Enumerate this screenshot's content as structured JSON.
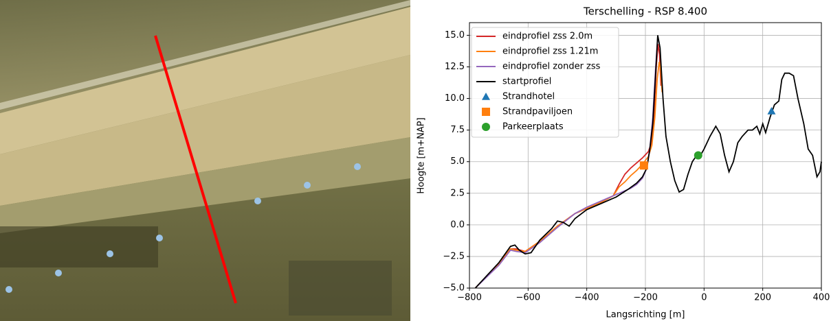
{
  "chart_data": {
    "type": "line",
    "title": "Terschelling - RSP 8.400",
    "xlabel": "Langsrichting [m]",
    "ylabel": "Hoogte [m+NAP]",
    "xlim": [
      -800,
      400
    ],
    "ylim": [
      -5,
      16
    ],
    "xticks": [
      {
        "value": -800,
        "label": "−800"
      },
      {
        "value": -600,
        "label": "−600"
      },
      {
        "value": -400,
        "label": "−400"
      },
      {
        "value": -200,
        "label": "−200"
      },
      0,
      200,
      400
    ],
    "yticks": [
      {
        "value": -5,
        "label": "−5.0"
      },
      {
        "value": -2.5,
        "label": "−2.5"
      },
      {
        "value": 0,
        "label": "0.0"
      },
      2.5,
      {
        "value": 5,
        "label": "5.0"
      },
      7.5,
      {
        "value": 10,
        "label": "10.0"
      },
      12.5,
      {
        "value": 15,
        "label": "15.0"
      }
    ],
    "grid": true,
    "legend": "upper left",
    "series": [
      {
        "name": "eindprofiel zss 2.0m",
        "color": "#d62728",
        "x": [
          -780,
          -700,
          -660,
          -640,
          -610,
          -560,
          -500,
          -440,
          -400,
          -350,
          -310,
          -290,
          -270,
          -250,
          -230,
          -210,
          -190,
          -178,
          -170,
          -163,
          -157,
          -152,
          -147
        ],
        "values": [
          -5,
          -3.1,
          -1.9,
          -1.9,
          -2.1,
          -1.3,
          -0.1,
          0.9,
          1.3,
          1.8,
          2.3,
          3.2,
          4.0,
          4.5,
          4.9,
          5.3,
          5.8,
          6.6,
          9,
          12.5,
          14.3,
          13.5,
          11
        ]
      },
      {
        "name": "eindprofiel zss 1.21m",
        "color": "#ff7f0e",
        "x": [
          -780,
          -700,
          -660,
          -640,
          -610,
          -560,
          -500,
          -440,
          -400,
          -350,
          -310,
          -290,
          -270,
          -250,
          -230,
          -210,
          -190,
          -178,
          -168,
          -160,
          -153,
          -148,
          -143
        ],
        "values": [
          -5,
          -3.1,
          -1.9,
          -2.0,
          -2.1,
          -1.3,
          -0.1,
          0.9,
          1.3,
          1.8,
          2.3,
          3.0,
          3.4,
          3.9,
          4.3,
          4.8,
          5.4,
          6.3,
          8.5,
          11.5,
          12.9,
          12.2,
          10.5
        ]
      },
      {
        "name": "eindprofiel zonder zss",
        "color": "#9467bd",
        "x": [
          -780,
          -700,
          -660,
          -640,
          -610,
          -560,
          -500,
          -440,
          -400,
          -350,
          -310,
          -280,
          -250,
          -230,
          -210,
          -195,
          -185,
          -175,
          -165,
          -158
        ],
        "values": [
          -5,
          -3.2,
          -2.0,
          -2.1,
          -2.2,
          -1.4,
          -0.2,
          0.9,
          1.4,
          1.9,
          2.3,
          2.6,
          2.9,
          3.2,
          3.7,
          4.5,
          6.0,
          8.5,
          12.5,
          14.8
        ]
      },
      {
        "name": "startprofiel",
        "color": "#000000",
        "x": [
          -780,
          -700,
          -660,
          -645,
          -630,
          -610,
          -590,
          -560,
          -520,
          -500,
          -480,
          -460,
          -440,
          -400,
          -350,
          -300,
          -260,
          -230,
          -210,
          -195,
          -185,
          -175,
          -165,
          -158,
          -150,
          -140,
          -130,
          -115,
          -100,
          -85,
          -70,
          -55,
          -40,
          -25,
          -10,
          0,
          20,
          40,
          55,
          70,
          85,
          100,
          115,
          130,
          150,
          165,
          180,
          190,
          200,
          210,
          225,
          240,
          255,
          265,
          275,
          290,
          305,
          320,
          340,
          355,
          370,
          385,
          395,
          400
        ],
        "values": [
          -5,
          -3,
          -1.7,
          -1.6,
          -2,
          -2.3,
          -2.2,
          -1.2,
          -0.3,
          0.3,
          0.2,
          -0.1,
          0.5,
          1.2,
          1.7,
          2.2,
          2.8,
          3.3,
          3.8,
          4.5,
          6,
          8,
          12,
          15,
          14,
          10,
          7,
          5,
          3.5,
          2.6,
          2.8,
          4,
          5,
          5.5,
          5.6,
          6,
          7,
          7.8,
          7.2,
          5.5,
          4.2,
          5,
          6.5,
          7,
          7.5,
          7.5,
          7.8,
          7.2,
          8,
          7.3,
          8.5,
          9.5,
          9.8,
          11.5,
          12,
          12,
          11.8,
          10,
          8,
          6,
          5.5,
          3.8,
          4.2,
          5
        ]
      },
      {
        "name": "Strandhotel",
        "color": "#1f77b4",
        "marker": "triangle",
        "x": [
          230
        ],
        "values": [
          9.0
        ]
      },
      {
        "name": "Strandpaviljoen",
        "color": "#ff7f0e",
        "marker": "square",
        "x": [
          -205
        ],
        "values": [
          4.7
        ]
      },
      {
        "name": "Parkeerplaats",
        "color": "#2ca02c",
        "marker": "circle",
        "x": [
          -20
        ],
        "values": [
          5.5
        ]
      }
    ]
  }
}
